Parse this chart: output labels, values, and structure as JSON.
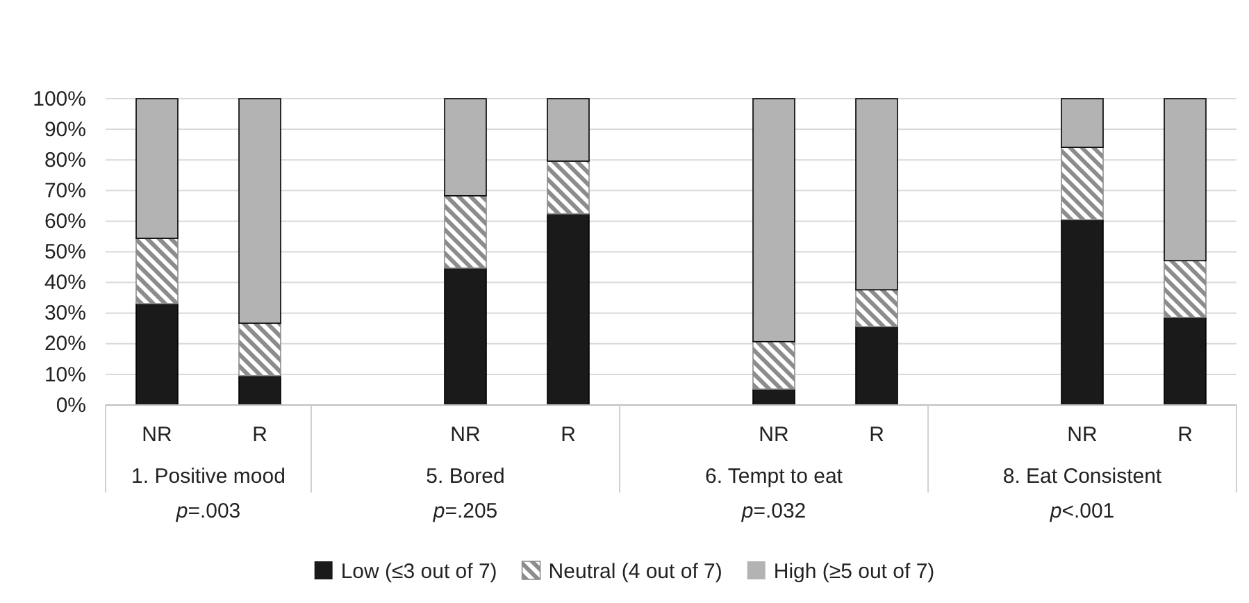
{
  "chart_data": {
    "type": "bar",
    "stacked": true,
    "categories": [
      "NR",
      "R",
      null,
      "NR",
      "R",
      null,
      "NR",
      "R",
      null,
      "NR",
      "R"
    ],
    "series": [
      {
        "name": "Low (≤3 out of 7)",
        "color": "#1a1a1a",
        "values": [
          33.1,
          9.6,
          null,
          44.7,
          62.4,
          null,
          5.2,
          25.6,
          null,
          60.5,
          28.6
        ]
      },
      {
        "name": "Neutral (4 out of 7)",
        "color": "#8c8c8c",
        "values": [
          21.3,
          17.1,
          null,
          23.6,
          17.2,
          null,
          15.5,
          12,
          null,
          23.6,
          18.5
        ]
      },
      {
        "name": "High (≥5 out of 7)",
        "color": "#b3b3b3",
        "values": [
          45.6,
          73.3,
          null,
          31.7,
          20.4,
          null,
          79.3,
          62.4,
          null,
          15.9,
          52.9
        ]
      }
    ],
    "ylim": [
      0,
      100
    ],
    "yticks": [
      {
        "value": 0,
        "label": "0%"
      },
      {
        "value": 10,
        "label": "10%"
      },
      {
        "value": 20,
        "label": "20%"
      },
      {
        "value": 30,
        "label": "30%"
      },
      {
        "value": 40,
        "label": "40%"
      },
      {
        "value": 50,
        "label": "50%"
      },
      {
        "value": 60,
        "label": "60%"
      },
      {
        "value": 70,
        "label": "70%"
      },
      {
        "value": 80,
        "label": "80%"
      },
      {
        "value": 90,
        "label": "90%"
      },
      {
        "value": 100,
        "label": "100%"
      }
    ],
    "annotations": [
      "1. Positive mood",
      "5. Bored",
      "6. Tempt to eat",
      "8. Eat Consistent",
      "p=.003",
      "p=.205",
      "p=.032",
      "p<.001"
    ],
    "legend": "bottom",
    "grid": "y"
  }
}
